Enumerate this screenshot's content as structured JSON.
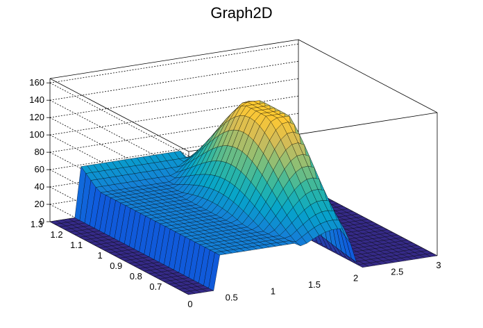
{
  "chart_data": {
    "type": "surface",
    "title": "Graph2D",
    "x_axis": {
      "ticks": [
        "0",
        "0.5",
        "1",
        "1.5",
        "2",
        "2.5",
        "3"
      ],
      "range": [
        0,
        3
      ]
    },
    "y_axis": {
      "ticks": [
        "0.7",
        "0.8",
        "0.9",
        "1",
        "1.1",
        "1.2",
        "1.3"
      ],
      "range": [
        0.6,
        1.3
      ]
    },
    "z_axis": {
      "ticks": [
        "0",
        "20",
        "40",
        "60",
        "80",
        "100",
        "120",
        "140",
        "160"
      ],
      "range": [
        0,
        165
      ]
    },
    "colormap": [
      "#352a87",
      "#0f5cdd",
      "#1481d6",
      "#06a4ca",
      "#2eb7a4",
      "#87bf77",
      "#d1bb59",
      "#fec832",
      "#f9fb0e"
    ],
    "grid": true,
    "surface_summary": {
      "note": "Surface is ~0 for x < 0.35; a high ridge (~110-140) lies near x 1.3-2.0 at y 0.7-1.1; a plateau ~55-60 runs along y 1.2-1.3 for x 0.5-1.5; ~0 for x > 2.1."
    }
  }
}
